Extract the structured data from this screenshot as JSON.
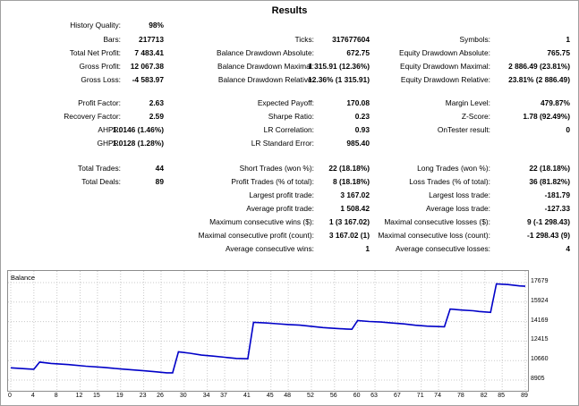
{
  "title": "Results",
  "rows": [
    {
      "l1": "History Quality:",
      "v1": "98%",
      "l2": "",
      "v2": "",
      "l3": "",
      "v3": ""
    },
    {
      "l1": "Bars:",
      "v1": "217713",
      "l2": "Ticks:",
      "v2": "317677604",
      "l3": "Symbols:",
      "v3": "1"
    },
    {
      "l1": "Total Net Profit:",
      "v1": "7 483.41",
      "l2": "Balance Drawdown Absolute:",
      "v2": "672.75",
      "l3": "Equity Drawdown Absolute:",
      "v3": "765.75"
    },
    {
      "l1": "Gross Profit:",
      "v1": "12 067.38",
      "l2": "Balance Drawdown Maximal:",
      "v2": "1 315.91 (12.36%)",
      "l3": "Equity Drawdown Maximal:",
      "v3": "2 886.49 (23.81%)"
    },
    {
      "l1": "Gross Loss:",
      "v1": "-4 583.97",
      "l2": "Balance Drawdown Relative:",
      "v2": "12.36% (1 315.91)",
      "l3": "Equity Drawdown Relative:",
      "v3": "23.81% (2 886.49)"
    },
    {
      "l1": "Profit Factor:",
      "v1": "2.63",
      "l2": "Expected Payoff:",
      "v2": "170.08",
      "l3": "Margin Level:",
      "v3": "479.87%"
    },
    {
      "l1": "Recovery Factor:",
      "v1": "2.59",
      "l2": "Sharpe Ratio:",
      "v2": "0.23",
      "l3": "Z-Score:",
      "v3": "1.78 (92.49%)"
    },
    {
      "l1": "AHPR:",
      "v1": "1.0146 (1.46%)",
      "l2": "LR Correlation:",
      "v2": "0.93",
      "l3": "OnTester result:",
      "v3": "0"
    },
    {
      "l1": "GHPR:",
      "v1": "1.0128 (1.28%)",
      "l2": "LR Standard Error:",
      "v2": "985.40",
      "l3": "",
      "v3": ""
    },
    {
      "l1": "Total Trades:",
      "v1": "44",
      "l2": "Short Trades (won %):",
      "v2": "22 (18.18%)",
      "l3": "Long Trades (won %):",
      "v3": "22 (18.18%)"
    },
    {
      "l1": "Total Deals:",
      "v1": "89",
      "l2": "Profit Trades (% of total):",
      "v2": "8 (18.18%)",
      "l3": "Loss Trades (% of total):",
      "v3": "36 (81.82%)"
    },
    {
      "l1": "",
      "v1": "",
      "l2": "Largest profit trade:",
      "v2": "3 167.02",
      "l3": "Largest loss trade:",
      "v3": "-181.79"
    },
    {
      "l1": "",
      "v1": "",
      "l2": "Average profit trade:",
      "v2": "1 508.42",
      "l3": "Average loss trade:",
      "v3": "-127.33"
    },
    {
      "l1": "",
      "v1": "",
      "l2": "Maximum consecutive wins ($):",
      "v2": "1 (3 167.02)",
      "l3": "Maximal consecutive losses ($):",
      "v3": "9 (-1 298.43)"
    },
    {
      "l1": "",
      "v1": "",
      "l2": "Maximal consecutive profit (count):",
      "v2": "3 167.02 (1)",
      "l3": "Maximal consecutive loss (count):",
      "v3": "-1 298.43 (9)"
    },
    {
      "l1": "",
      "v1": "",
      "l2": "Average consecutive wins:",
      "v2": "1",
      "l3": "Average consecutive losses:",
      "v3": "4"
    }
  ],
  "chart": {
    "title": "Balance",
    "line_color": "#0000c8",
    "y_ticks": [
      "17679",
      "15924",
      "14169",
      "12415",
      "10660",
      "8905"
    ],
    "x_ticks": [
      "0",
      "4",
      "8",
      "12",
      "15",
      "19",
      "23",
      "26",
      "30",
      "34",
      "37",
      "41",
      "45",
      "48",
      "52",
      "56",
      "60",
      "63",
      "67",
      "71",
      "74",
      "78",
      "82",
      "85",
      "89"
    ]
  },
  "chart_data": {
    "type": "line",
    "title": "Balance",
    "xlabel": "",
    "ylabel": "",
    "xlim": [
      0,
      89
    ],
    "ylim": [
      8905,
      17679
    ],
    "grid": true,
    "series": [
      {
        "values": [
          [
            0,
            10010
          ],
          [
            3,
            9900
          ],
          [
            4,
            9880
          ],
          [
            5,
            10520
          ],
          [
            7,
            10400
          ],
          [
            10,
            10300
          ],
          [
            13,
            10150
          ],
          [
            16,
            10050
          ],
          [
            19,
            9900
          ],
          [
            23,
            9740
          ],
          [
            25,
            9650
          ],
          [
            27,
            9560
          ],
          [
            28,
            9560
          ],
          [
            29,
            11450
          ],
          [
            31,
            11320
          ],
          [
            33,
            11150
          ],
          [
            35,
            11060
          ],
          [
            37,
            10960
          ],
          [
            39,
            10850
          ],
          [
            41,
            10820
          ],
          [
            42,
            14100
          ],
          [
            44,
            14050
          ],
          [
            46,
            13980
          ],
          [
            48,
            13900
          ],
          [
            50,
            13850
          ],
          [
            52,
            13740
          ],
          [
            54,
            13630
          ],
          [
            56,
            13560
          ],
          [
            58,
            13500
          ],
          [
            59,
            13480
          ],
          [
            60,
            14270
          ],
          [
            62,
            14180
          ],
          [
            64,
            14130
          ],
          [
            66,
            14040
          ],
          [
            68,
            13960
          ],
          [
            70,
            13840
          ],
          [
            72,
            13760
          ],
          [
            74,
            13720
          ],
          [
            75,
            13700
          ],
          [
            76,
            15300
          ],
          [
            78,
            15210
          ],
          [
            80,
            15140
          ],
          [
            81,
            15080
          ],
          [
            82,
            15040
          ],
          [
            83,
            15000
          ],
          [
            84,
            17560
          ],
          [
            86,
            17500
          ],
          [
            88,
            17380
          ],
          [
            89,
            17350
          ]
        ]
      }
    ]
  }
}
